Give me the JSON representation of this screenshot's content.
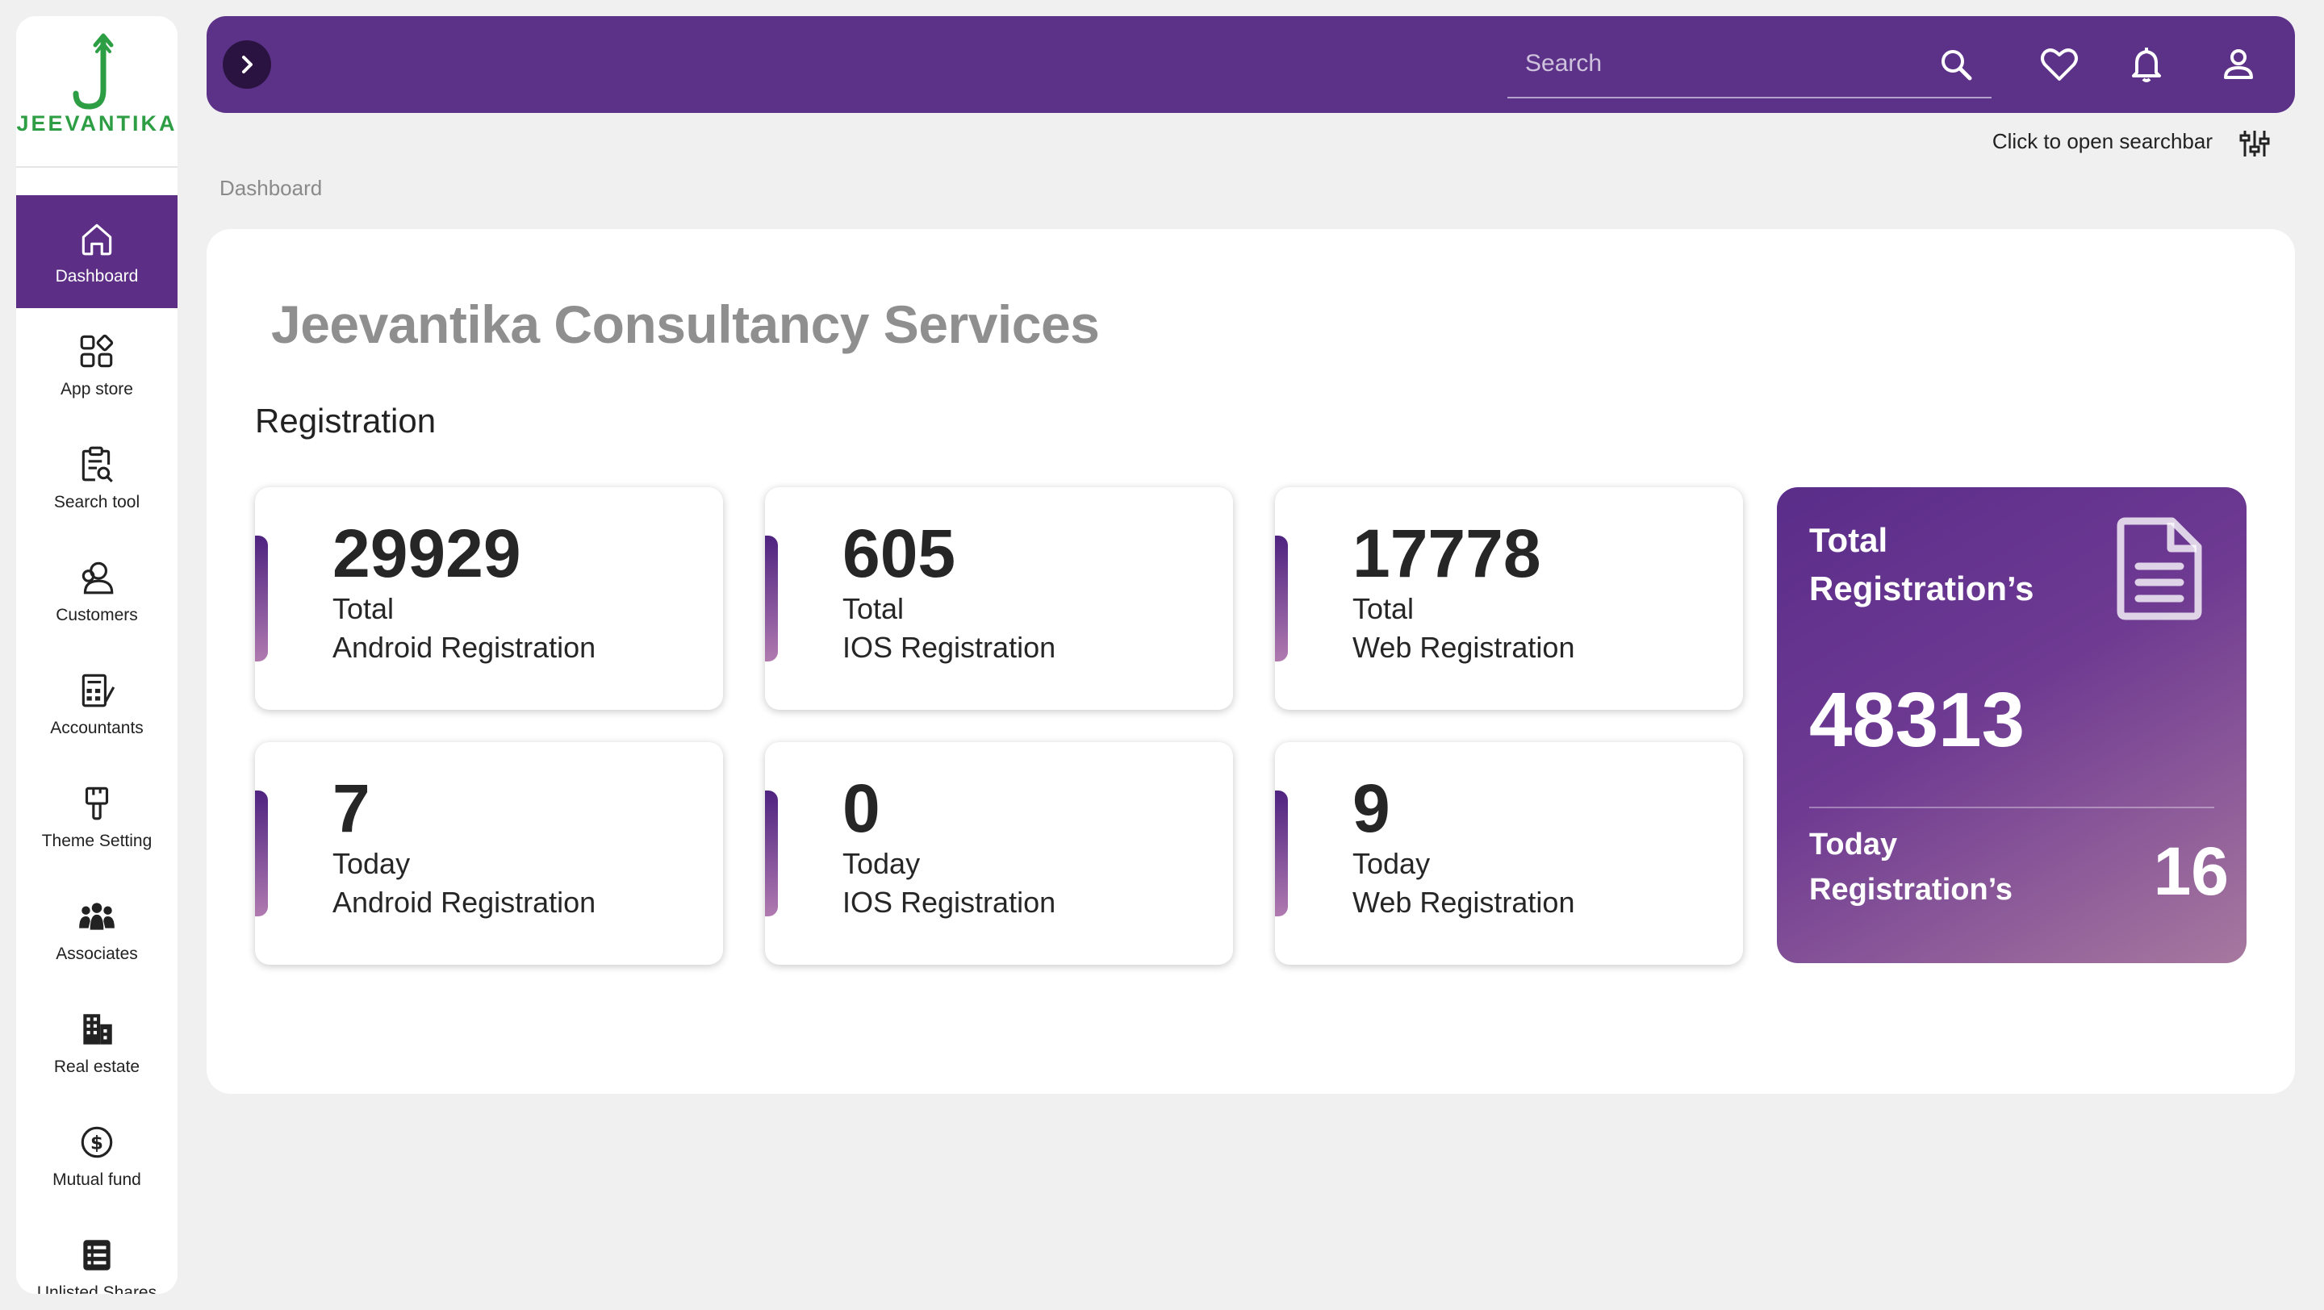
{
  "brand": {
    "name": "JEEVANTIKA",
    "color": "#2e9e45"
  },
  "colors": {
    "accent": "#5c3289",
    "active_nav": "#5c2e86"
  },
  "sidebar": {
    "items": [
      {
        "label": "Dashboard",
        "icon": "home-icon",
        "active": true
      },
      {
        "label": "App store",
        "icon": "apps-grid-icon"
      },
      {
        "label": "Search tool",
        "icon": "clipboard-search-icon"
      },
      {
        "label": "Customers",
        "icon": "customers-icon"
      },
      {
        "label": "Accountants",
        "icon": "calculator-icon"
      },
      {
        "label": "Theme Setting",
        "icon": "paint-brush-icon"
      },
      {
        "label": "Associates",
        "icon": "group-icon"
      },
      {
        "label": "Real estate",
        "icon": "building-icon"
      },
      {
        "label": "Mutual fund",
        "icon": "dollar-circle-icon"
      },
      {
        "label": "Unlisted Shares",
        "icon": "list-icon"
      }
    ]
  },
  "topbar": {
    "search_placeholder": "Search",
    "icons": [
      "menu-toggle-icon",
      "search-icon",
      "heart-icon",
      "bell-icon",
      "user-icon"
    ]
  },
  "hint": {
    "text": "Click to open searchbar",
    "icon": "sliders-icon"
  },
  "breadcrumb": "Dashboard",
  "main": {
    "company": "Jeevantika Consultancy Services",
    "section": "Registration",
    "cards": [
      {
        "value": "29929",
        "line1": "Total",
        "line2": "Android Registration"
      },
      {
        "value": "605",
        "line1": "Total",
        "line2": "IOS Registration"
      },
      {
        "value": "17778",
        "line1": "Total",
        "line2": "Web Registration"
      },
      {
        "value": "7",
        "line1": "Today",
        "line2": "Android Registration"
      },
      {
        "value": "0",
        "line1": "Today",
        "line2": "IOS Registration"
      },
      {
        "value": "9",
        "line1": "Today",
        "line2": "Web Registration"
      }
    ],
    "total": {
      "label_line1": "Total",
      "label_line2": "Registration’s",
      "value": "48313",
      "today_line1": "Today",
      "today_line2": "Registration’s",
      "today_value": "16",
      "icon": "document-icon"
    }
  }
}
